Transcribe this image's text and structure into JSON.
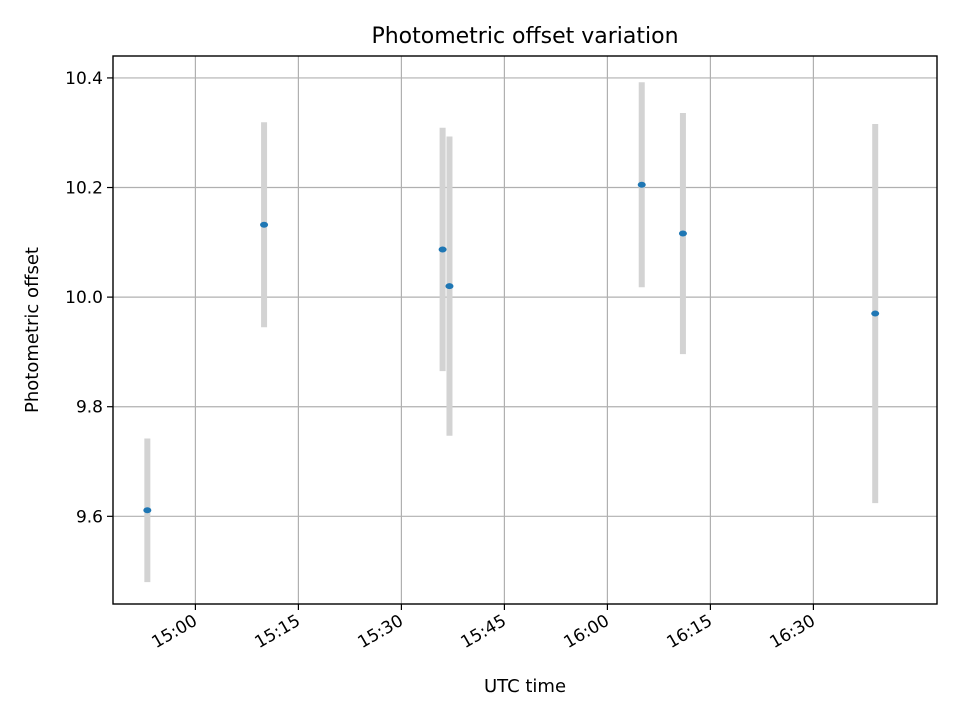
{
  "chart_data": {
    "type": "scatter",
    "title": "Photometric offset variation",
    "xlabel": "UTC time",
    "ylabel": "Photometric offset",
    "xlim": [
      "14:48",
      "16:48"
    ],
    "ylim": [
      9.44,
      10.44
    ],
    "x_ticks": [
      "15:00",
      "15:15",
      "15:30",
      "15:45",
      "16:00",
      "16:15",
      "16:30"
    ],
    "y_ticks": [
      "9.6",
      "9.8",
      "10.0",
      "10.2",
      "10.4"
    ],
    "grid": true,
    "colors": {
      "point": "#1f77b4",
      "error_bar": "#d3d3d3"
    },
    "series": [
      {
        "points": [
          {
            "x": "14:53",
            "y": 9.611,
            "yerr": 0.131
          },
          {
            "x": "15:10",
            "y": 10.132,
            "yerr": 0.187
          },
          {
            "x": "15:36",
            "y": 10.087,
            "yerr": 0.222
          },
          {
            "x": "15:37",
            "y": 10.02,
            "yerr": 0.273
          },
          {
            "x": "16:05",
            "y": 10.205,
            "yerr": 0.187
          },
          {
            "x": "16:11",
            "y": 10.116,
            "yerr": 0.22
          },
          {
            "x": "16:39",
            "y": 9.97,
            "yerr": 0.346
          }
        ]
      }
    ]
  }
}
